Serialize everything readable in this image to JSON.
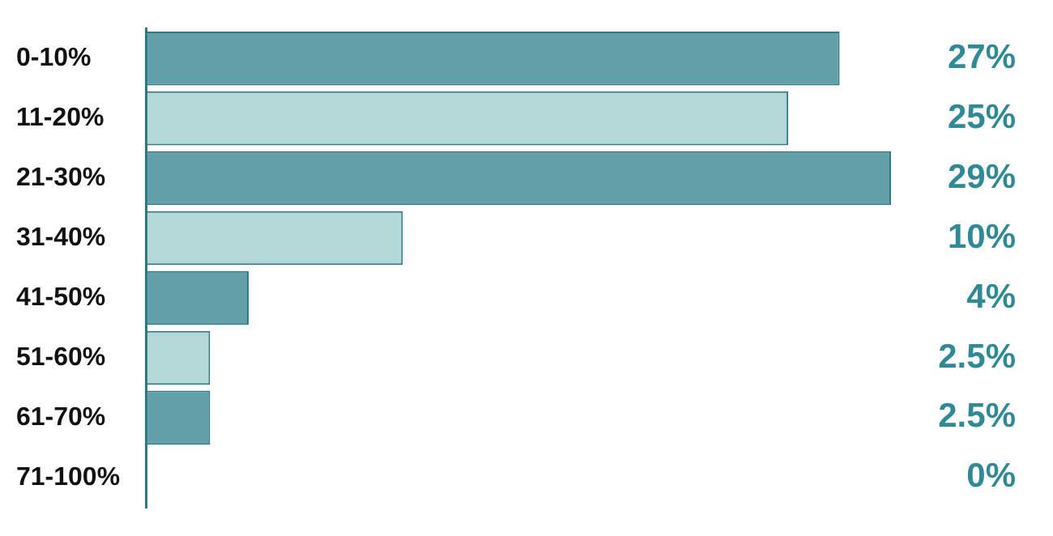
{
  "chart_data": {
    "type": "bar",
    "orientation": "horizontal",
    "data_labels": true,
    "categories": [
      "0-10%",
      "11-20%",
      "21-30%",
      "31-40%",
      "41-50%",
      "51-60%",
      "61-70%",
      "71-100%"
    ],
    "values": [
      27,
      25,
      29,
      10,
      4,
      2.5,
      2.5,
      0
    ],
    "value_labels": [
      "27%",
      "25%",
      "29%",
      "10%",
      "4%",
      "2.5%",
      "2.5%",
      "0%"
    ],
    "colors": [
      "#619fa9",
      "#b4d7d8",
      "#619fa9",
      "#b4d7d8",
      "#619fa9",
      "#b4d7d8",
      "#619fa9",
      "#b4d7d8"
    ]
  }
}
